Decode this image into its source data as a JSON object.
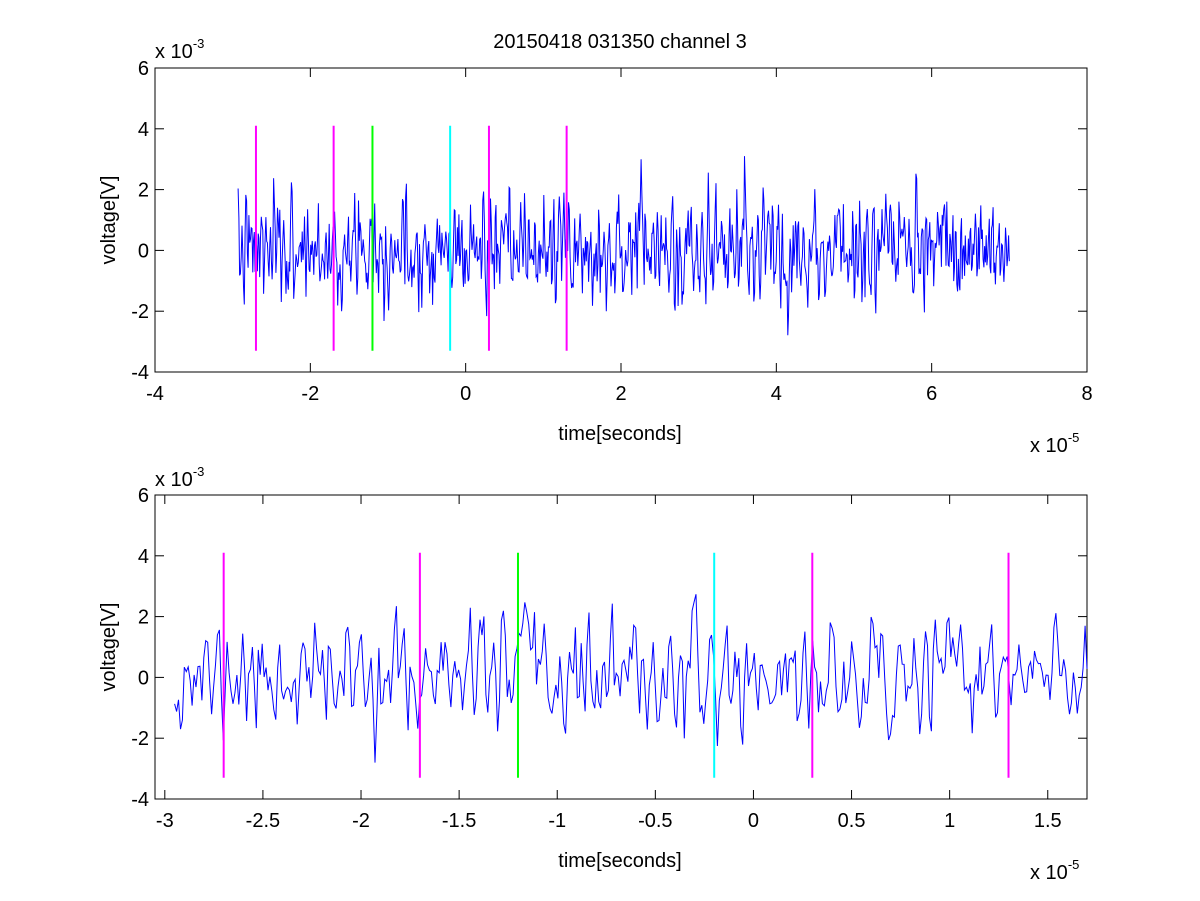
{
  "figure_title": "20150418 031350 channel 3",
  "chart_data": [
    {
      "type": "line",
      "title": "20150418 031350 channel 3",
      "xlabel": "time[seconds]",
      "ylabel": "voltage[V]",
      "x_exponent_label": "x 10",
      "x_exponent": "-5",
      "y_exponent_label": "x 10",
      "y_exponent": "-3",
      "xlim": [
        -4e-05,
        8e-05
      ],
      "ylim": [
        -0.004,
        0.006
      ],
      "x_ticks": [
        -4e-05,
        -2e-05,
        0,
        2e-05,
        4e-05,
        6e-05,
        8e-05
      ],
      "x_tick_labels": [
        "-4",
        "-2",
        "0",
        "2",
        "4",
        "6",
        "8"
      ],
      "y_ticks": [
        -0.004,
        -0.002,
        0,
        0.002,
        0.004,
        0.006
      ],
      "y_tick_labels": [
        "-4",
        "-2",
        "0",
        "2",
        "4",
        "6"
      ],
      "grid": false,
      "signal": {
        "color": "#0000ff",
        "x_start": -2.93e-05,
        "x_end": 7e-05,
        "samples": 1000,
        "seed": 7,
        "noise_sd": 0.00082,
        "bursts": [
          {
            "t": -1.38e-05,
            "amp": 0.0034
          },
          {
            "t": -1.22e-05,
            "amp": 0.0027
          },
          {
            "t": -1.5e-05,
            "amp": -0.0025
          },
          {
            "t": 2.25e-05,
            "amp": 0.0037
          },
          {
            "t": 2.8e-05,
            "amp": -0.0029
          },
          {
            "t": 1.3e-05,
            "amp": 0.0024
          },
          {
            "t": 3.6e-05,
            "amp": 0.003
          }
        ]
      },
      "markers": [
        {
          "x": -2.7e-05,
          "color": "#ff00ff"
        },
        {
          "x": -1.7e-05,
          "color": "#ff00ff"
        },
        {
          "x": -1.2e-05,
          "color": "#00ff00"
        },
        {
          "x": -2e-06,
          "color": "#00ffff"
        },
        {
          "x": 3e-06,
          "color": "#ff00ff"
        },
        {
          "x": 1.3e-05,
          "color": "#ff00ff"
        }
      ],
      "marker_range": [
        -0.0033,
        0.0041
      ]
    },
    {
      "type": "line",
      "xlabel": "time[seconds]",
      "ylabel": "voltage[V]",
      "x_exponent_label": "x 10",
      "x_exponent": "-5",
      "y_exponent_label": "x 10",
      "y_exponent": "-3",
      "xlim": [
        -3.05e-05,
        1.7e-05
      ],
      "ylim": [
        -0.004,
        0.006
      ],
      "x_ticks": [
        -3e-05,
        -2.5e-05,
        -2e-05,
        -1.5e-05,
        -1e-05,
        -5e-06,
        0,
        5e-06,
        1e-05,
        1.5e-05
      ],
      "x_tick_labels": [
        "-3",
        "-2.5",
        "-2",
        "-1.5",
        "-1",
        "-0.5",
        "0",
        "0.5",
        "1",
        "1.5"
      ],
      "y_ticks": [
        -0.004,
        -0.002,
        0,
        0.002,
        0.004,
        0.006
      ],
      "y_tick_labels": [
        "-4",
        "-2",
        "0",
        "2",
        "4",
        "6"
      ],
      "grid": false,
      "signal": {
        "color": "#0000ff",
        "x_start": -2.95e-05,
        "x_end": 1.7e-05,
        "samples": 470,
        "seed": 11,
        "noise_sd": 0.00085,
        "bursts": [
          {
            "t": -1.38e-05,
            "amp": 0.0034
          },
          {
            "t": -1.48e-05,
            "amp": -0.0025
          },
          {
            "t": -1.16e-05,
            "amp": 0.0027
          },
          {
            "t": 7e-06,
            "amp": -0.0029
          },
          {
            "t": 1.05e-05,
            "amp": 0.0024
          },
          {
            "t": 6.2e-06,
            "amp": 0.0023
          }
        ]
      },
      "markers": [
        {
          "x": -2.7e-05,
          "color": "#ff00ff"
        },
        {
          "x": -1.7e-05,
          "color": "#ff00ff"
        },
        {
          "x": -1.2e-05,
          "color": "#00ff00"
        },
        {
          "x": -2e-06,
          "color": "#00ffff"
        },
        {
          "x": 3e-06,
          "color": "#ff00ff"
        },
        {
          "x": 1.3e-05,
          "color": "#ff00ff"
        }
      ],
      "marker_range": [
        -0.0033,
        0.0041
      ]
    }
  ]
}
